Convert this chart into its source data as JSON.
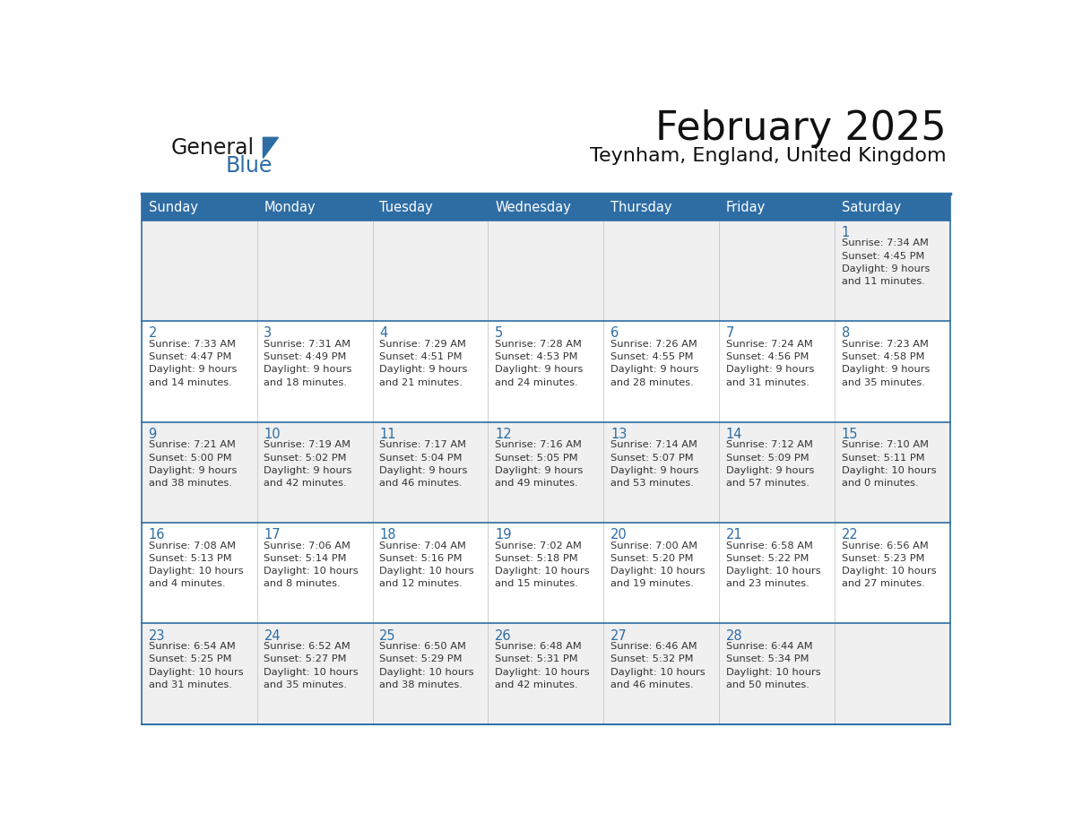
{
  "title": "February 2025",
  "subtitle": "Teynham, England, United Kingdom",
  "header_bg": "#2E6DA4",
  "header_text_color": "#FFFFFF",
  "row_bg_odd": "#F0F0F0",
  "row_bg_even": "#FFFFFF",
  "border_color": "#2E6DA4",
  "title_color": "#111111",
  "day_number_color": "#2E6DA4",
  "cell_text_color": "#333333",
  "days_of_week": [
    "Sunday",
    "Monday",
    "Tuesday",
    "Wednesday",
    "Thursday",
    "Friday",
    "Saturday"
  ],
  "logo_color1": "#1a1a1a",
  "logo_color2": "#2E6DA4",
  "weeks": [
    [
      {
        "day": "",
        "info": ""
      },
      {
        "day": "",
        "info": ""
      },
      {
        "day": "",
        "info": ""
      },
      {
        "day": "",
        "info": ""
      },
      {
        "day": "",
        "info": ""
      },
      {
        "day": "",
        "info": ""
      },
      {
        "day": "1",
        "info": "Sunrise: 7:34 AM\nSunset: 4:45 PM\nDaylight: 9 hours\nand 11 minutes."
      }
    ],
    [
      {
        "day": "2",
        "info": "Sunrise: 7:33 AM\nSunset: 4:47 PM\nDaylight: 9 hours\nand 14 minutes."
      },
      {
        "day": "3",
        "info": "Sunrise: 7:31 AM\nSunset: 4:49 PM\nDaylight: 9 hours\nand 18 minutes."
      },
      {
        "day": "4",
        "info": "Sunrise: 7:29 AM\nSunset: 4:51 PM\nDaylight: 9 hours\nand 21 minutes."
      },
      {
        "day": "5",
        "info": "Sunrise: 7:28 AM\nSunset: 4:53 PM\nDaylight: 9 hours\nand 24 minutes."
      },
      {
        "day": "6",
        "info": "Sunrise: 7:26 AM\nSunset: 4:55 PM\nDaylight: 9 hours\nand 28 minutes."
      },
      {
        "day": "7",
        "info": "Sunrise: 7:24 AM\nSunset: 4:56 PM\nDaylight: 9 hours\nand 31 minutes."
      },
      {
        "day": "8",
        "info": "Sunrise: 7:23 AM\nSunset: 4:58 PM\nDaylight: 9 hours\nand 35 minutes."
      }
    ],
    [
      {
        "day": "9",
        "info": "Sunrise: 7:21 AM\nSunset: 5:00 PM\nDaylight: 9 hours\nand 38 minutes."
      },
      {
        "day": "10",
        "info": "Sunrise: 7:19 AM\nSunset: 5:02 PM\nDaylight: 9 hours\nand 42 minutes."
      },
      {
        "day": "11",
        "info": "Sunrise: 7:17 AM\nSunset: 5:04 PM\nDaylight: 9 hours\nand 46 minutes."
      },
      {
        "day": "12",
        "info": "Sunrise: 7:16 AM\nSunset: 5:05 PM\nDaylight: 9 hours\nand 49 minutes."
      },
      {
        "day": "13",
        "info": "Sunrise: 7:14 AM\nSunset: 5:07 PM\nDaylight: 9 hours\nand 53 minutes."
      },
      {
        "day": "14",
        "info": "Sunrise: 7:12 AM\nSunset: 5:09 PM\nDaylight: 9 hours\nand 57 minutes."
      },
      {
        "day": "15",
        "info": "Sunrise: 7:10 AM\nSunset: 5:11 PM\nDaylight: 10 hours\nand 0 minutes."
      }
    ],
    [
      {
        "day": "16",
        "info": "Sunrise: 7:08 AM\nSunset: 5:13 PM\nDaylight: 10 hours\nand 4 minutes."
      },
      {
        "day": "17",
        "info": "Sunrise: 7:06 AM\nSunset: 5:14 PM\nDaylight: 10 hours\nand 8 minutes."
      },
      {
        "day": "18",
        "info": "Sunrise: 7:04 AM\nSunset: 5:16 PM\nDaylight: 10 hours\nand 12 minutes."
      },
      {
        "day": "19",
        "info": "Sunrise: 7:02 AM\nSunset: 5:18 PM\nDaylight: 10 hours\nand 15 minutes."
      },
      {
        "day": "20",
        "info": "Sunrise: 7:00 AM\nSunset: 5:20 PM\nDaylight: 10 hours\nand 19 minutes."
      },
      {
        "day": "21",
        "info": "Sunrise: 6:58 AM\nSunset: 5:22 PM\nDaylight: 10 hours\nand 23 minutes."
      },
      {
        "day": "22",
        "info": "Sunrise: 6:56 AM\nSunset: 5:23 PM\nDaylight: 10 hours\nand 27 minutes."
      }
    ],
    [
      {
        "day": "23",
        "info": "Sunrise: 6:54 AM\nSunset: 5:25 PM\nDaylight: 10 hours\nand 31 minutes."
      },
      {
        "day": "24",
        "info": "Sunrise: 6:52 AM\nSunset: 5:27 PM\nDaylight: 10 hours\nand 35 minutes."
      },
      {
        "day": "25",
        "info": "Sunrise: 6:50 AM\nSunset: 5:29 PM\nDaylight: 10 hours\nand 38 minutes."
      },
      {
        "day": "26",
        "info": "Sunrise: 6:48 AM\nSunset: 5:31 PM\nDaylight: 10 hours\nand 42 minutes."
      },
      {
        "day": "27",
        "info": "Sunrise: 6:46 AM\nSunset: 5:32 PM\nDaylight: 10 hours\nand 46 minutes."
      },
      {
        "day": "28",
        "info": "Sunrise: 6:44 AM\nSunset: 5:34 PM\nDaylight: 10 hours\nand 50 minutes."
      },
      {
        "day": "",
        "info": ""
      }
    ]
  ]
}
